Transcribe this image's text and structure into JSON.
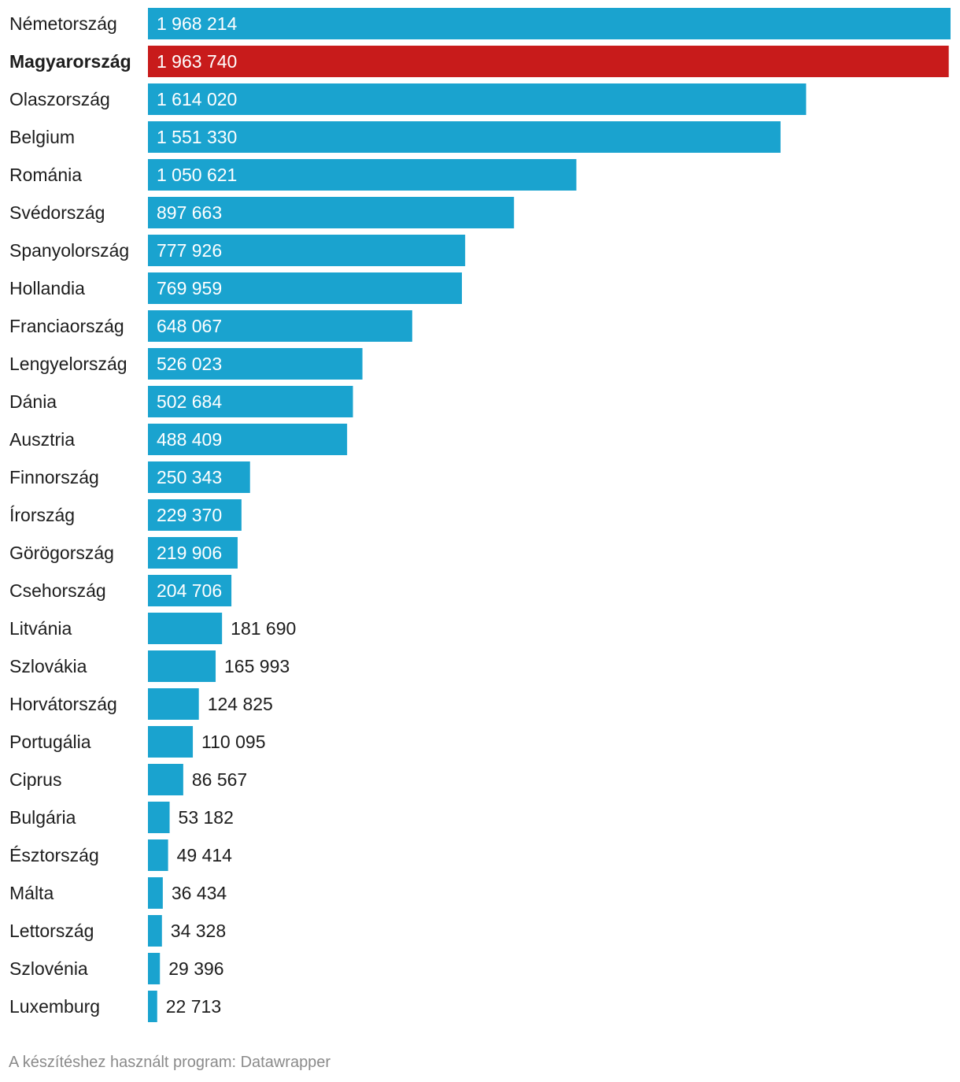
{
  "chart_data": {
    "type": "bar",
    "orientation": "horizontal",
    "categories": [
      "Németország",
      "Magyarország",
      "Olaszország",
      "Belgium",
      "Románia",
      "Svédország",
      "Spanyolország",
      "Hollandia",
      "Franciaország",
      "Lengyelország",
      "Dánia",
      "Ausztria",
      "Finnország",
      "Írország",
      "Görögország",
      "Csehország",
      "Litvánia",
      "Szlovákia",
      "Horvátország",
      "Portugália",
      "Ciprus",
      "Bulgária",
      "Észtország",
      "Málta",
      "Lettország",
      "Szlovénia",
      "Luxemburg"
    ],
    "values": [
      1968214,
      1963740,
      1614020,
      1551330,
      1050621,
      897663,
      777926,
      769959,
      648067,
      526023,
      502684,
      488409,
      250343,
      229370,
      219906,
      204706,
      181690,
      165993,
      124825,
      110095,
      86567,
      53182,
      49414,
      36434,
      34328,
      29396,
      22713
    ],
    "value_labels": [
      "1 968 214",
      "1 963 740",
      "1 614 020",
      "1 551 330",
      "1 050 621",
      "897 663",
      "777 926",
      "769 959",
      "648 067",
      "526 023",
      "502 684",
      "488 409",
      "250 343",
      "229 370",
      "219 906",
      "204 706",
      "181 690",
      "165 993",
      "124 825",
      "110 095",
      "86 567",
      "53 182",
      "49 414",
      "36 434",
      "34 328",
      "29 396",
      "22 713"
    ],
    "highlight": "Magyarország",
    "xlim": [
      0,
      1968214
    ],
    "title": "",
    "xlabel": "",
    "ylabel": "",
    "grid": false
  },
  "colors": {
    "bar": "#1aa3cf",
    "highlight": "#c81b1b",
    "label": "#1d1d1d",
    "inside_value": "#ffffff",
    "outside_value": "#1d1d1d",
    "footer": "#8a8a8a"
  },
  "footer": {
    "text": "A készítéshez használt program: Datawrapper"
  }
}
